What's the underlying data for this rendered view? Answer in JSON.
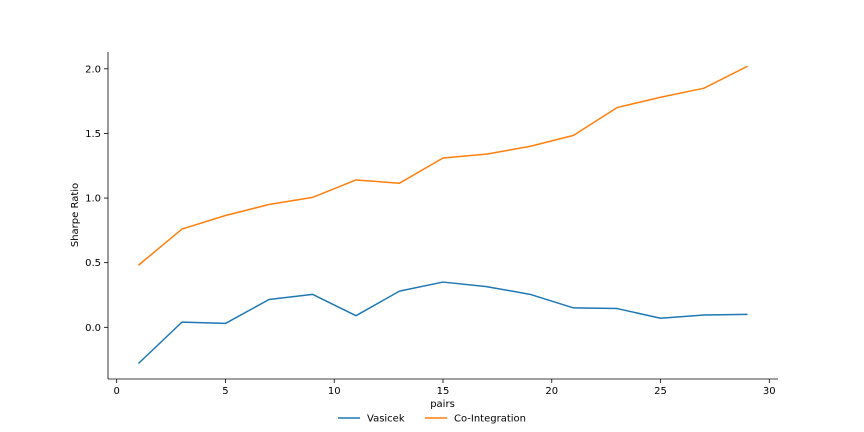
{
  "chart_data": {
    "type": "line",
    "xlabel": "pairs",
    "ylabel": "Sharpe Ratio",
    "xlim": [
      -0.4,
      30.4
    ],
    "ylim": [
      -0.4,
      2.13
    ],
    "x_ticks": [
      0,
      5,
      10,
      15,
      20,
      25,
      30
    ],
    "y_ticks": [
      0.0,
      0.5,
      1.0,
      1.5,
      2.0
    ],
    "x_tick_labels": [
      "0",
      "5",
      "10",
      "15",
      "20",
      "25",
      "30"
    ],
    "y_tick_labels": [
      "0.0",
      "0.5",
      "1.0",
      "1.5",
      "2.0"
    ],
    "grid": false,
    "legend_position": "bottom-center",
    "x": [
      1,
      3,
      5,
      7,
      9,
      11,
      13,
      15,
      17,
      19,
      21,
      23,
      25,
      27,
      29
    ],
    "series": [
      {
        "name": "Vasicek",
        "color": "#1f77b4",
        "values": [
          -0.28,
          0.04,
          0.03,
          0.215,
          0.255,
          0.09,
          0.28,
          0.35,
          0.315,
          0.255,
          0.15,
          0.145,
          0.07,
          0.095,
          0.1
        ]
      },
      {
        "name": "Co-Integration",
        "color": "#ff7f0e",
        "values": [
          0.48,
          0.76,
          0.865,
          0.95,
          1.005,
          1.14,
          1.115,
          1.31,
          1.34,
          1.4,
          1.485,
          1.7,
          1.78,
          1.85,
          2.02
        ]
      }
    ]
  }
}
